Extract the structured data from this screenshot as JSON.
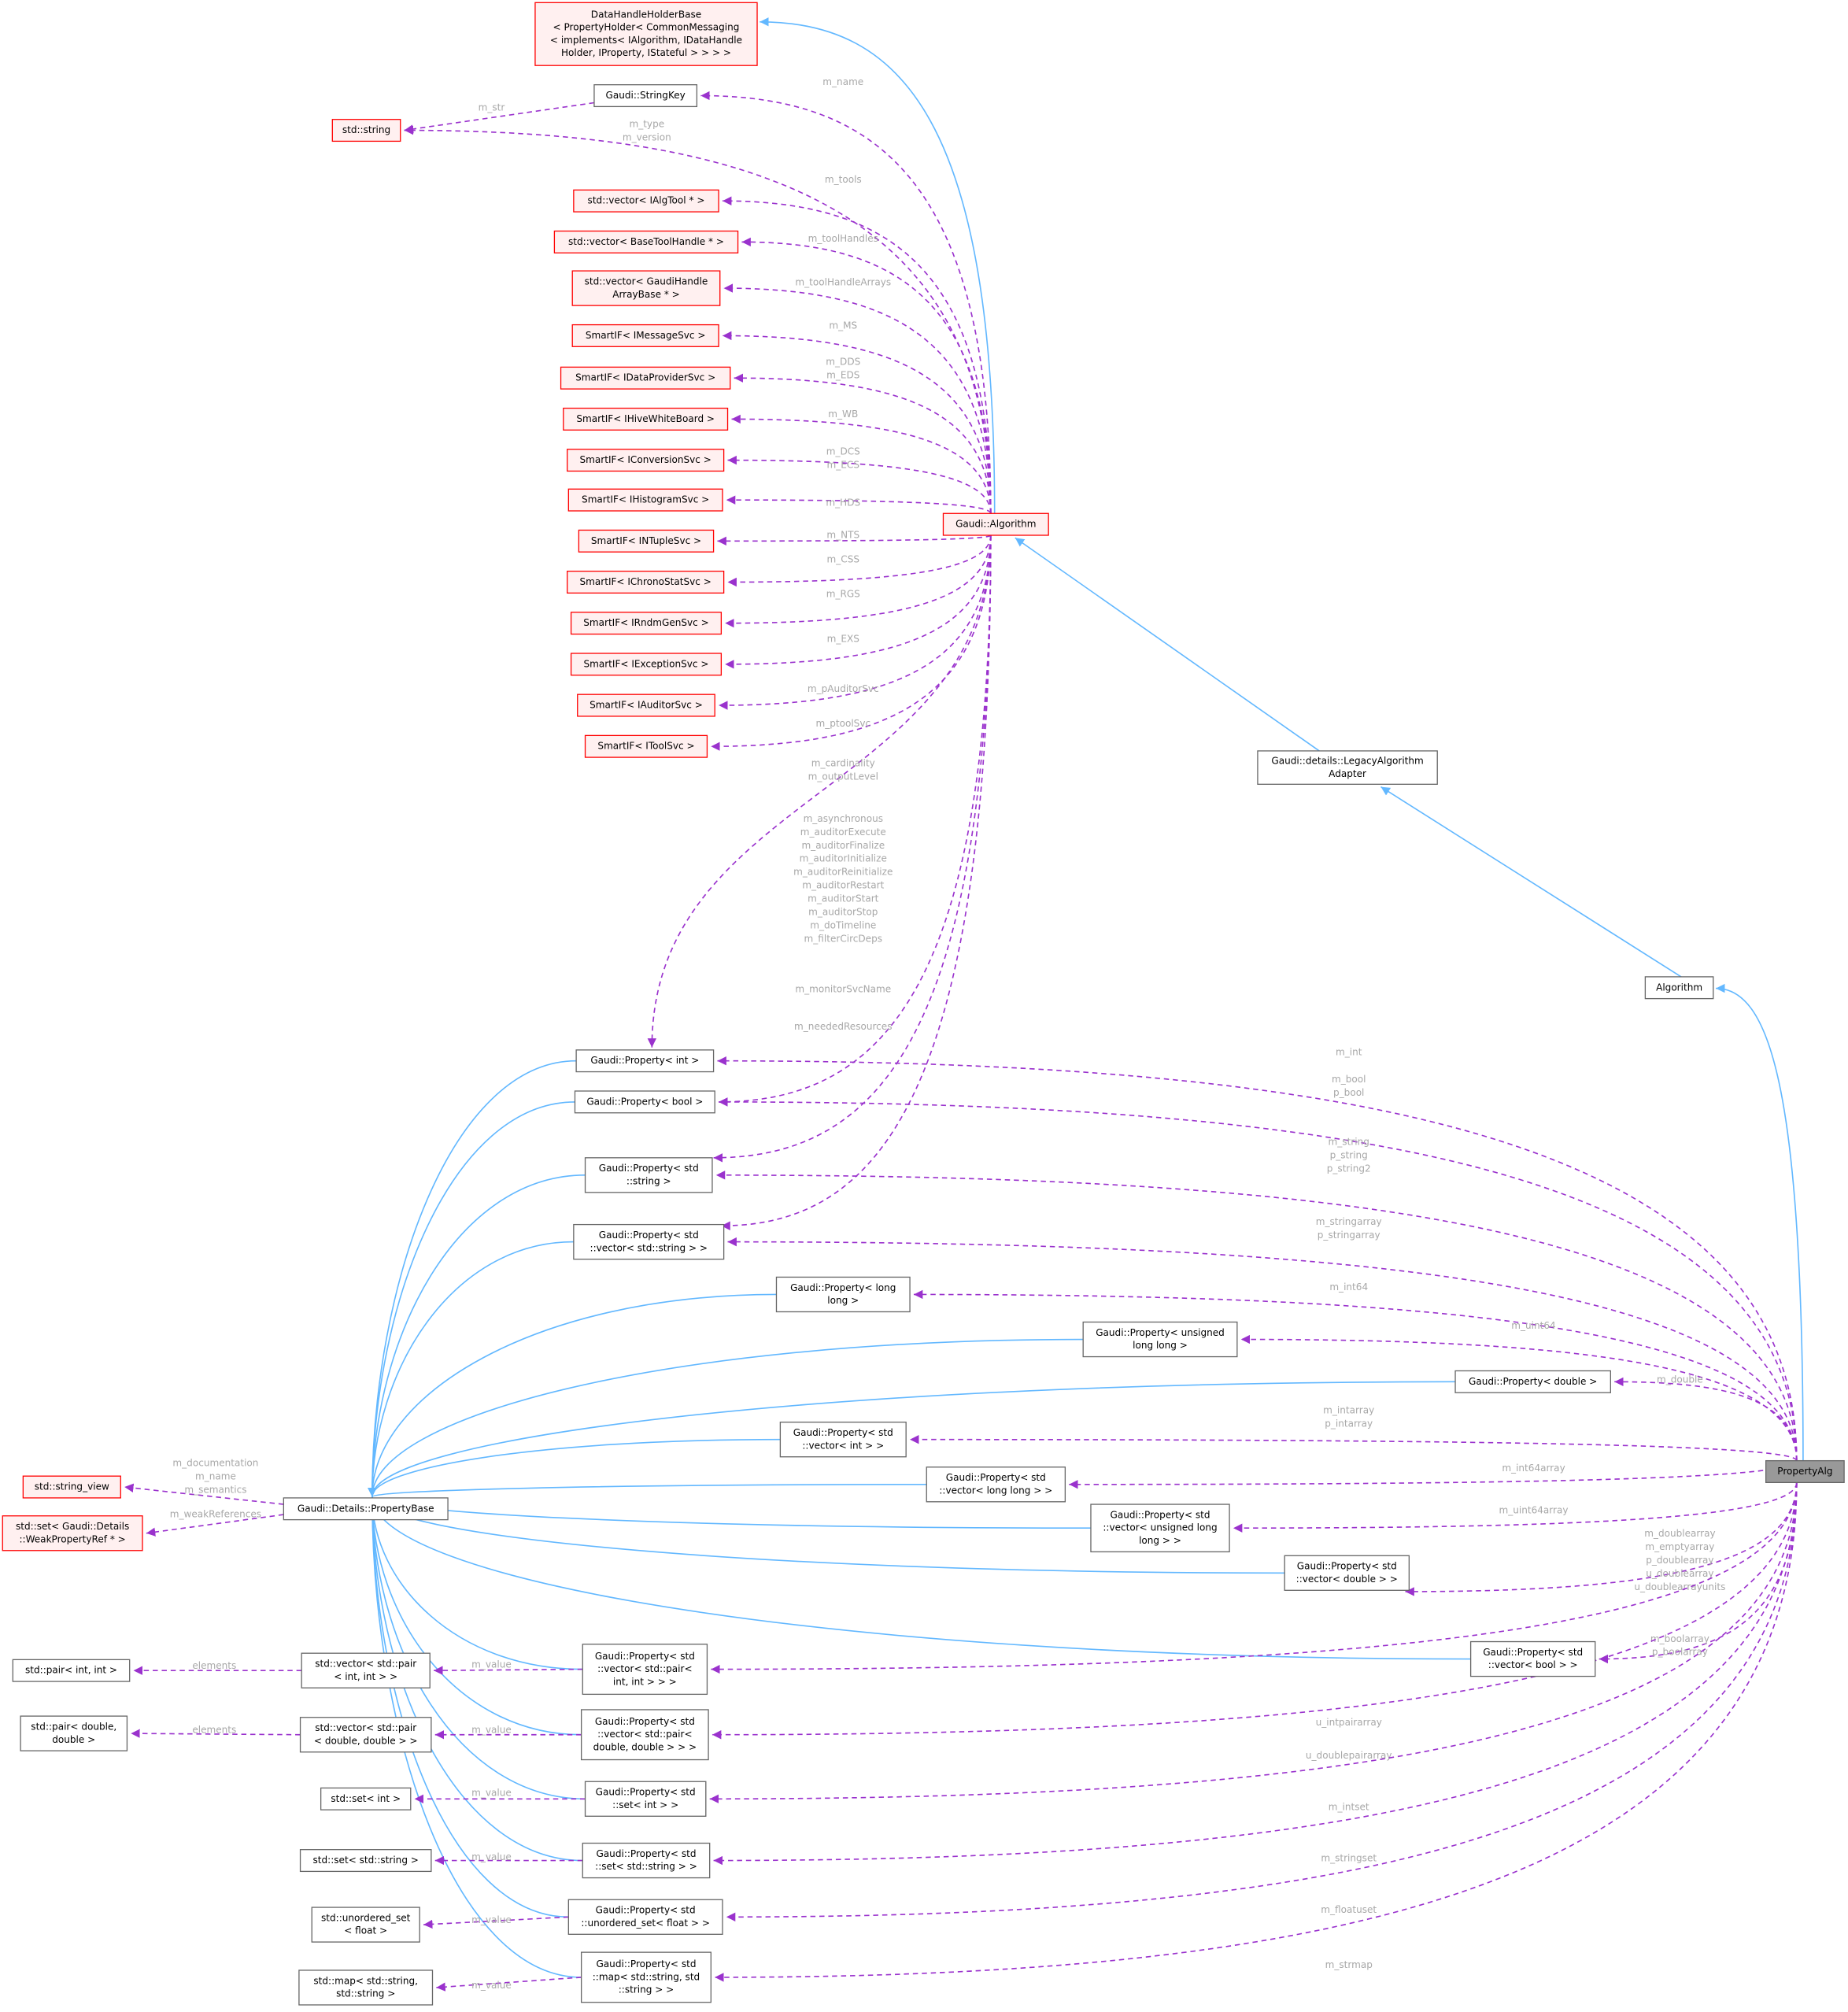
{
  "nodes": [
    {
      "lines": [
        "DataHandleHolderBase",
        "< PropertyHolder< CommonMessaging",
        "< implements< IAlgorithm, IDataHandle",
        "Holder, IProperty, IStateful > > > >"
      ]
    },
    {
      "lines": [
        "Gaudi::StringKey"
      ]
    },
    {
      "lines": [
        "std::string"
      ]
    },
    {
      "lines": [
        "std::vector< IAlgTool * >"
      ]
    },
    {
      "lines": [
        "std::vector< BaseToolHandle * >"
      ]
    },
    {
      "lines": [
        "std::vector< GaudiHandle",
        "ArrayBase * >"
      ]
    },
    {
      "lines": [
        "SmartIF< IMessageSvc >"
      ]
    },
    {
      "lines": [
        "SmartIF< IDataProviderSvc >"
      ]
    },
    {
      "lines": [
        "SmartIF< IHiveWhiteBoard >"
      ]
    },
    {
      "lines": [
        "SmartIF< IConversionSvc >"
      ]
    },
    {
      "lines": [
        "SmartIF< IHistogramSvc >"
      ]
    },
    {
      "lines": [
        "SmartIF< INTupleSvc >"
      ]
    },
    {
      "lines": [
        "SmartIF< IChronoStatSvc >"
      ]
    },
    {
      "lines": [
        "SmartIF< IRndmGenSvc >"
      ]
    },
    {
      "lines": [
        "SmartIF< IExceptionSvc >"
      ]
    },
    {
      "lines": [
        "SmartIF< IAuditorSvc >"
      ]
    },
    {
      "lines": [
        "SmartIF< IToolSvc >"
      ]
    },
    {
      "lines": [
        "Gaudi::Algorithm"
      ]
    },
    {
      "lines": [
        "Gaudi::details::LegacyAlgorithm",
        "Adapter"
      ]
    },
    {
      "lines": [
        "Algorithm"
      ]
    },
    {
      "lines": [
        "PropertyAlg"
      ]
    },
    {
      "lines": [
        "Gaudi::Property< int >"
      ]
    },
    {
      "lines": [
        "Gaudi::Property< bool >"
      ]
    },
    {
      "lines": [
        "Gaudi::Property< std",
        "::string >"
      ]
    },
    {
      "lines": [
        "Gaudi::Property< std",
        "::vector< std::string > >"
      ]
    },
    {
      "lines": [
        "Gaudi::Property< long",
        "long >"
      ]
    },
    {
      "lines": [
        "Gaudi::Property< unsigned",
        "long long >"
      ]
    },
    {
      "lines": [
        "Gaudi::Property< double >"
      ]
    },
    {
      "lines": [
        "Gaudi::Property< std",
        "::vector< int > >"
      ]
    },
    {
      "lines": [
        "Gaudi::Property< std",
        "::vector< long long > >"
      ]
    },
    {
      "lines": [
        "Gaudi::Property< std",
        "::vector< unsigned long",
        "long > >"
      ]
    },
    {
      "lines": [
        "Gaudi::Property< std",
        "::vector< double > >"
      ]
    },
    {
      "lines": [
        "Gaudi::Property< std",
        "::vector< bool > >"
      ]
    },
    {
      "lines": [
        "Gaudi::Details::PropertyBase"
      ]
    },
    {
      "lines": [
        "std::string_view"
      ]
    },
    {
      "lines": [
        "std::set< Gaudi::Details",
        "::WeakPropertyRef * >"
      ]
    },
    {
      "lines": [
        "std::pair< int, int >"
      ]
    },
    {
      "lines": [
        "std::vector< std::pair",
        "< int, int > >"
      ]
    },
    {
      "lines": [
        "Gaudi::Property< std",
        "::vector< std::pair<",
        "int, int > > >"
      ]
    },
    {
      "lines": [
        "std::pair< double,",
        "double >"
      ]
    },
    {
      "lines": [
        "std::vector< std::pair",
        "< double, double > >"
      ]
    },
    {
      "lines": [
        "Gaudi::Property< std",
        "::vector< std::pair<",
        "double, double > > >"
      ]
    },
    {
      "lines": [
        "std::set< int >"
      ]
    },
    {
      "lines": [
        "Gaudi::Property< std",
        "::set< int > >"
      ]
    },
    {
      "lines": [
        "std::set< std::string >"
      ]
    },
    {
      "lines": [
        "Gaudi::Property< std",
        "::set< std::string > >"
      ]
    },
    {
      "lines": [
        "std::unordered_set",
        "< float >"
      ]
    },
    {
      "lines": [
        "Gaudi::Property< std",
        "::unordered_set< float > >"
      ]
    },
    {
      "lines": [
        "std::map< std::string,",
        "std::string >"
      ]
    },
    {
      "lines": [
        "Gaudi::Property< std",
        "::map< std::string, std",
        "::string > >"
      ]
    }
  ],
  "edges": [
    {
      "labels": [
        "m_str"
      ]
    },
    {
      "labels": [
        "m_name"
      ]
    },
    {
      "labels": [
        "m_type",
        "m_version"
      ]
    },
    {
      "labels": [
        "m_tools"
      ]
    },
    {
      "labels": [
        "m_toolHandles"
      ]
    },
    {
      "labels": [
        "m_toolHandleArrays"
      ]
    },
    {
      "labels": [
        "m_MS"
      ]
    },
    {
      "labels": [
        "m_DDS",
        "m_EDS"
      ]
    },
    {
      "labels": [
        "m_WB"
      ]
    },
    {
      "labels": [
        "m_DCS",
        "m_ECS"
      ]
    },
    {
      "labels": [
        "m_HDS"
      ]
    },
    {
      "labels": [
        "m_NTS"
      ]
    },
    {
      "labels": [
        "m_CSS"
      ]
    },
    {
      "labels": [
        "m_RGS"
      ]
    },
    {
      "labels": [
        "m_EXS"
      ]
    },
    {
      "labels": [
        "m_pAuditorSvc"
      ]
    },
    {
      "labels": [
        "m_ptoolSvc"
      ]
    },
    {
      "labels": [
        "m_cardinality",
        "m_outputLevel"
      ]
    },
    {
      "labels": [
        "m_asynchronous",
        "m_auditorExecute",
        "m_auditorFinalize",
        "m_auditorInitialize",
        "m_auditorReinitialize",
        "m_auditorRestart",
        "m_auditorStart",
        "m_auditorStop",
        "m_doTimeline",
        "m_filterCircDeps"
      ]
    },
    {
      "labels": [
        "m_monitorSvcName"
      ]
    },
    {
      "labels": [
        "m_neededResources"
      ]
    },
    {
      "labels": [
        "m_int"
      ]
    },
    {
      "labels": [
        "m_bool",
        "p_bool"
      ]
    },
    {
      "labels": [
        "m_string",
        "p_string",
        "p_string2"
      ]
    },
    {
      "labels": [
        "m_stringarray",
        "p_stringarray"
      ]
    },
    {
      "labels": [
        "m_int64"
      ]
    },
    {
      "labels": [
        "m_uint64"
      ]
    },
    {
      "labels": [
        "m_double"
      ]
    },
    {
      "labels": [
        "m_intarray",
        "p_intarray"
      ]
    },
    {
      "labels": [
        "m_int64array"
      ]
    },
    {
      "labels": [
        "m_uint64array"
      ]
    },
    {
      "labels": [
        "m_doublearray",
        "m_emptyarray",
        "p_doublearray",
        "u_doublearray",
        "u_doublearrayunits"
      ]
    },
    {
      "labels": [
        "m_boolarray",
        "p_boolarray"
      ]
    },
    {
      "labels": [
        "u_intpairarray"
      ]
    },
    {
      "labels": [
        "u_doublepairarray"
      ]
    },
    {
      "labels": [
        "m_intset"
      ]
    },
    {
      "labels": [
        "m_stringset"
      ]
    },
    {
      "labels": [
        "m_floatuset"
      ]
    },
    {
      "labels": [
        "m_strmap"
      ]
    },
    {
      "labels": [
        "m_documentation",
        "m_name",
        "m_semantics"
      ]
    },
    {
      "labels": [
        "m_weakReferences"
      ]
    },
    {
      "labels": [
        "elements"
      ]
    },
    {
      "labels": [
        "elements"
      ]
    },
    {
      "labels": [
        "m_value"
      ]
    },
    {
      "labels": [
        "m_value"
      ]
    },
    {
      "labels": [
        "m_value"
      ]
    },
    {
      "labels": [
        "m_value"
      ]
    },
    {
      "labels": [
        "m_value"
      ]
    },
    {
      "labels": [
        "m_value"
      ]
    }
  ]
}
